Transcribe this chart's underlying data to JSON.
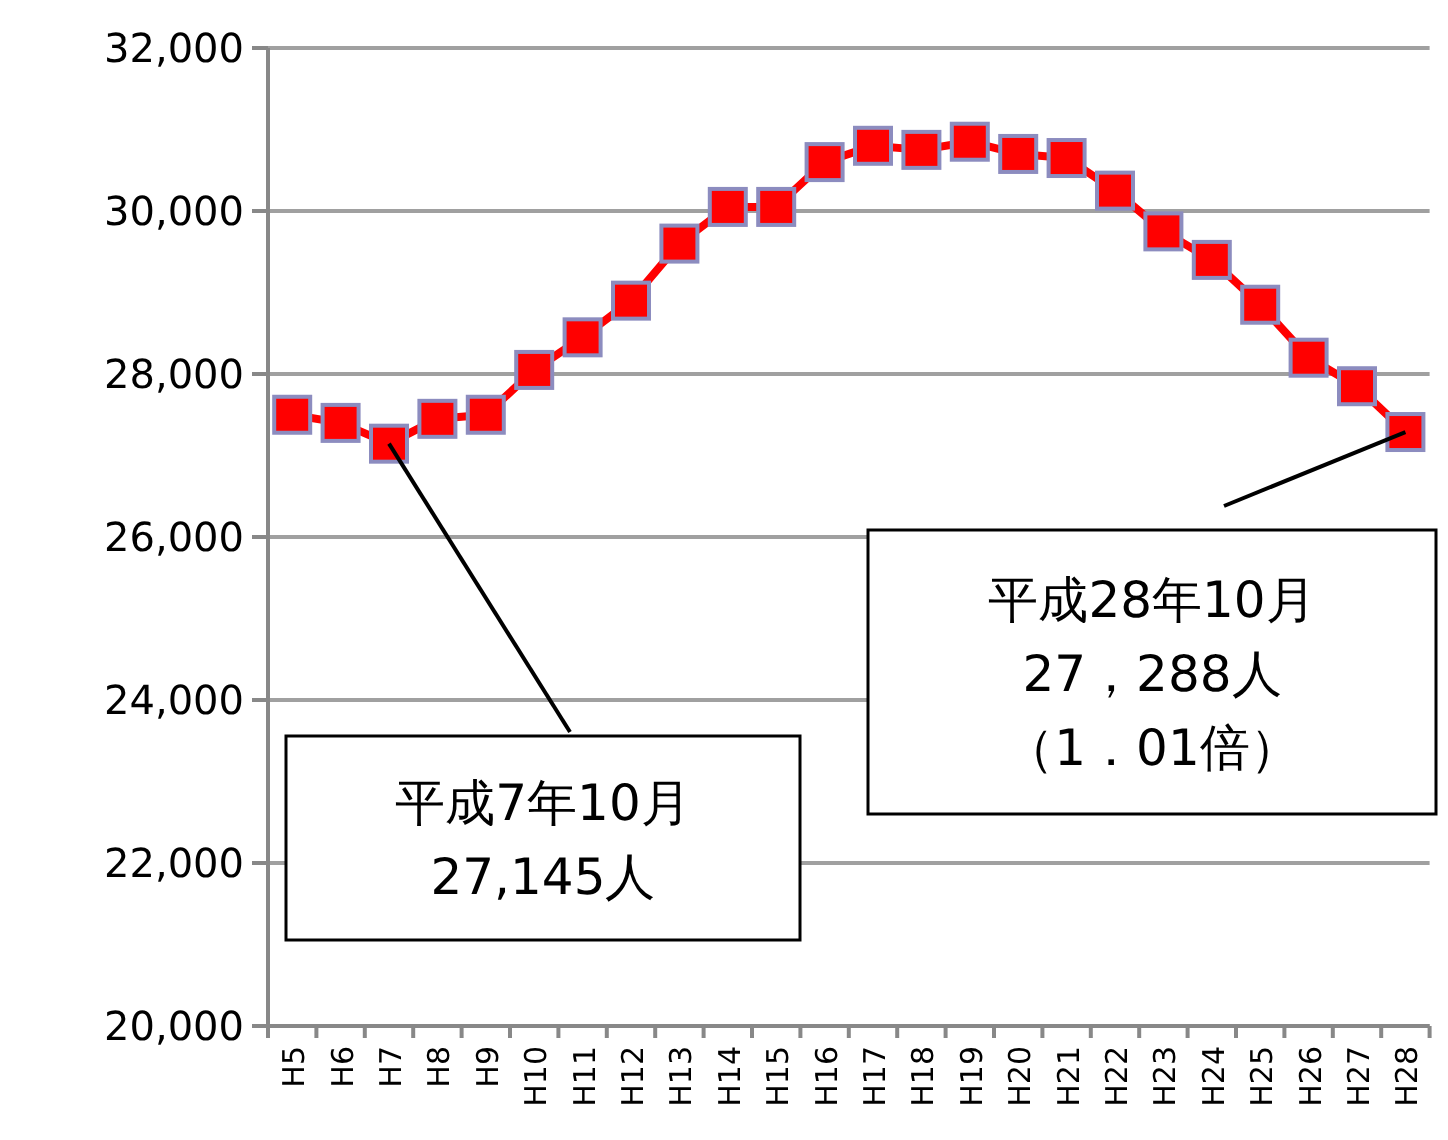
{
  "chart_data": {
    "type": "line",
    "categories": [
      "H5",
      "H6",
      "H7",
      "H8",
      "H9",
      "H10",
      "H11",
      "H12",
      "H13",
      "H14",
      "H15",
      "H16",
      "H17",
      "H18",
      "H19",
      "H20",
      "H21",
      "H22",
      "H23",
      "H24",
      "H25",
      "H26",
      "H27",
      "H28"
    ],
    "series": [
      {
        "color": "#ff0000",
        "values": [
          27500,
          27400,
          27145,
          27450,
          27500,
          28050,
          28450,
          28900,
          29600,
          30050,
          30050,
          30600,
          30800,
          30750,
          30850,
          30700,
          30650,
          30250,
          29750,
          29400,
          28850,
          28200,
          27850,
          27288
        ]
      }
    ],
    "ylim": [
      20000,
      32000
    ],
    "yticks": [
      {
        "value": 20000,
        "label": "20,000"
      },
      {
        "value": 22000,
        "label": "22,000"
      },
      {
        "value": 24000,
        "label": "24,000"
      },
      {
        "value": 26000,
        "label": "26,000"
      },
      {
        "value": 28000,
        "label": "28,000"
      },
      {
        "value": 30000,
        "label": "30,000"
      },
      {
        "value": 32000,
        "label": "32,000"
      }
    ],
    "grid": "y",
    "marker": "square",
    "line_style": "solid",
    "annotations": [
      {
        "text": "平成7年10月",
        "x": "H7",
        "y": 27145
      },
      "27,145人",
      {
        "text": "平成28年10月",
        "x": "H28",
        "y": 27288
      },
      "27，288人",
      "（1．01倍）"
    ]
  }
}
